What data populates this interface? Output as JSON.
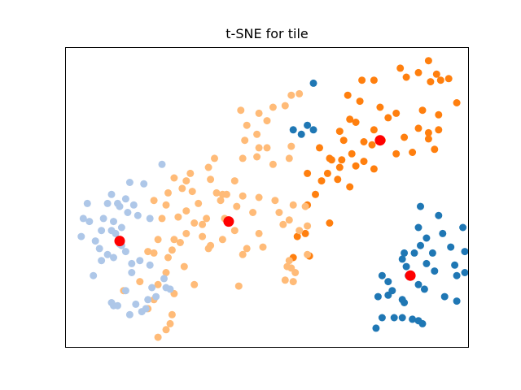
{
  "chart_data": {
    "type": "scatter",
    "title": "t-SNE for tile",
    "xlabel": "",
    "ylabel": "",
    "xlim": [
      0,
      100
    ],
    "ylim": [
      0,
      100
    ],
    "grid": false,
    "legend": "none",
    "series": [
      {
        "color": "#1f77b4",
        "points": [
          [
            61.5,
            88
          ],
          [
            56.5,
            72.5
          ],
          [
            58.5,
            71
          ],
          [
            60,
            74
          ],
          [
            61.5,
            72.5
          ],
          [
            88,
            47
          ],
          [
            92.5,
            44
          ],
          [
            98.5,
            40
          ],
          [
            87.5,
            40
          ],
          [
            93.5,
            38
          ],
          [
            89.5,
            36.5
          ],
          [
            95.5,
            33.5
          ],
          [
            88,
            34
          ],
          [
            86.5,
            31.5
          ],
          [
            84,
            31.5
          ],
          [
            91,
            31.5
          ],
          [
            99,
            32
          ],
          [
            83.5,
            29.5
          ],
          [
            78.5,
            24
          ],
          [
            85,
            24
          ],
          [
            91.5,
            25.5
          ],
          [
            97,
            24
          ],
          [
            99,
            25
          ],
          [
            89.5,
            28
          ],
          [
            84.5,
            27
          ],
          [
            87.5,
            21
          ],
          [
            80,
            22
          ],
          [
            96.5,
            27.5
          ],
          [
            81,
            19
          ],
          [
            89,
            19.5
          ],
          [
            83.5,
            16
          ],
          [
            80,
            17.5
          ],
          [
            77.5,
            17
          ],
          [
            83.5,
            10
          ],
          [
            86,
            9.5
          ],
          [
            87.5,
            9
          ],
          [
            81.5,
            10
          ],
          [
            78.5,
            10
          ],
          [
            97,
            15.5
          ],
          [
            94,
            17
          ],
          [
            88.5,
            8
          ],
          [
            77,
            6.5
          ],
          [
            84,
            15
          ]
        ]
      },
      {
        "color": "#ff7f0e",
        "points": [
          [
            90,
            95.5
          ],
          [
            87.5,
            91.5
          ],
          [
            83,
            93
          ],
          [
            84.5,
            90
          ],
          [
            92,
            91
          ],
          [
            90.5,
            88.5
          ],
          [
            95,
            89.5
          ],
          [
            93,
            89
          ],
          [
            73.5,
            89
          ],
          [
            76.5,
            89
          ],
          [
            70,
            84
          ],
          [
            73,
            82
          ],
          [
            78,
            80
          ],
          [
            82,
            78
          ],
          [
            80,
            76.5
          ],
          [
            88.5,
            79
          ],
          [
            92.5,
            77.5
          ],
          [
            97,
            81.5
          ],
          [
            90,
            71.5
          ],
          [
            92.5,
            72.5
          ],
          [
            90,
            69.5
          ],
          [
            84,
            70
          ],
          [
            87.5,
            73
          ],
          [
            91.5,
            66
          ],
          [
            82,
            64.5
          ],
          [
            86,
            65
          ],
          [
            78.5,
            69
          ],
          [
            76.5,
            72.5
          ],
          [
            70.5,
            76
          ],
          [
            72,
            75
          ],
          [
            68,
            72
          ],
          [
            69,
            69
          ],
          [
            74,
            68.5
          ],
          [
            76,
            67.5
          ],
          [
            71,
            64.5
          ],
          [
            63,
            66.5
          ],
          [
            65.5,
            63
          ],
          [
            68.5,
            62.5
          ],
          [
            72,
            60.5
          ],
          [
            74,
            62
          ],
          [
            67.5,
            56
          ],
          [
            70.5,
            53.5
          ],
          [
            65,
            58
          ],
          [
            76.5,
            59.5
          ],
          [
            60,
            58
          ],
          [
            63.5,
            55.5
          ],
          [
            62,
            51
          ],
          [
            60,
            47.5
          ],
          [
            65.5,
            41.5
          ],
          [
            59.5,
            38
          ],
          [
            57.5,
            37
          ],
          [
            60.5,
            30.5
          ],
          [
            56.5,
            30
          ],
          [
            66,
            62.5
          ],
          [
            68,
            60
          ]
        ]
      },
      {
        "color": "#ffbb78",
        "points": [
          [
            58,
            84.5
          ],
          [
            56,
            84
          ],
          [
            54.5,
            80.5
          ],
          [
            51.5,
            80
          ],
          [
            43.5,
            79
          ],
          [
            48,
            78
          ],
          [
            50,
            75.5
          ],
          [
            45,
            74
          ],
          [
            47.5,
            71
          ],
          [
            44.5,
            69
          ],
          [
            48,
            66.5
          ],
          [
            44,
            63
          ],
          [
            50,
            66.5
          ],
          [
            56,
            67
          ],
          [
            55.5,
            63
          ],
          [
            51.5,
            61
          ],
          [
            47.5,
            63.5
          ],
          [
            37,
            63
          ],
          [
            35.5,
            60
          ],
          [
            31,
            58
          ],
          [
            27,
            56.5
          ],
          [
            30,
            55.5
          ],
          [
            36,
            56
          ],
          [
            42,
            55.5
          ],
          [
            37.5,
            51.5
          ],
          [
            40,
            51
          ],
          [
            44,
            50.5
          ],
          [
            48,
            50
          ],
          [
            52,
            49
          ],
          [
            56.5,
            47.5
          ],
          [
            59.5,
            47
          ],
          [
            46.5,
            45
          ],
          [
            42.5,
            47
          ],
          [
            39,
            51
          ],
          [
            31.5,
            52
          ],
          [
            29,
            53
          ],
          [
            25.5,
            51.5
          ],
          [
            25,
            47.5
          ],
          [
            22,
            49
          ],
          [
            24,
            43
          ],
          [
            35,
            43
          ],
          [
            34,
            41
          ],
          [
            39.5,
            43
          ],
          [
            32,
            41.5
          ],
          [
            28,
            43.5
          ],
          [
            30,
            45.5
          ],
          [
            33,
            48
          ],
          [
            38.5,
            49
          ],
          [
            53,
            45
          ],
          [
            55.5,
            42.5
          ],
          [
            54,
            41
          ],
          [
            58,
            39
          ],
          [
            48,
            38
          ],
          [
            42,
            39
          ],
          [
            39,
            36
          ],
          [
            34,
            37
          ],
          [
            30,
            38
          ],
          [
            27,
            36
          ],
          [
            23,
            36
          ],
          [
            22,
            31.5
          ],
          [
            25.5,
            30
          ],
          [
            26.5,
            32.5
          ],
          [
            20.5,
            32
          ],
          [
            28.5,
            35
          ],
          [
            36,
            34
          ],
          [
            45,
            33
          ],
          [
            49,
            33.5
          ],
          [
            44,
            31
          ],
          [
            35.5,
            33
          ],
          [
            29.5,
            27
          ],
          [
            25,
            25
          ],
          [
            23,
            21
          ],
          [
            27,
            18
          ],
          [
            32,
            21
          ],
          [
            22,
            16
          ],
          [
            18.5,
            22
          ],
          [
            14.5,
            19
          ],
          [
            20.5,
            13
          ],
          [
            26.5,
            11
          ],
          [
            26,
            8
          ],
          [
            25,
            6
          ],
          [
            23,
            3.5
          ],
          [
            55.5,
            29
          ],
          [
            57,
            25
          ],
          [
            60,
            31
          ],
          [
            56,
            26.5
          ],
          [
            60,
            40.5
          ],
          [
            43,
            20.5
          ],
          [
            54.5,
            22.5
          ],
          [
            56.5,
            22
          ],
          [
            55,
            27
          ]
        ]
      },
      {
        "color": "#aec7e8",
        "points": [
          [
            24,
            61
          ],
          [
            16,
            55
          ],
          [
            19.5,
            54.5
          ],
          [
            11.5,
            51
          ],
          [
            13,
            48
          ],
          [
            15,
            49.5
          ],
          [
            13.5,
            47
          ],
          [
            17,
            47.5
          ],
          [
            15.5,
            45
          ],
          [
            18,
            44
          ],
          [
            21,
            43
          ],
          [
            10.5,
            48
          ],
          [
            5.5,
            48
          ],
          [
            4.5,
            43
          ],
          [
            6,
            42
          ],
          [
            9.5,
            43
          ],
          [
            12,
            42
          ],
          [
            14,
            40
          ],
          [
            11.5,
            39
          ],
          [
            9,
            39
          ],
          [
            4,
            37
          ],
          [
            7.5,
            35.5
          ],
          [
            8.5,
            33
          ],
          [
            14,
            34
          ],
          [
            12.5,
            38
          ],
          [
            13.5,
            34.5
          ],
          [
            15,
            32
          ],
          [
            12,
            30
          ],
          [
            10.5,
            31
          ],
          [
            9,
            29
          ],
          [
            16.5,
            28
          ],
          [
            18.5,
            29
          ],
          [
            21,
            27.5
          ],
          [
            16.5,
            25
          ],
          [
            24.5,
            23
          ],
          [
            25,
            20
          ],
          [
            21.5,
            20
          ],
          [
            22.5,
            17
          ],
          [
            20.5,
            16
          ],
          [
            19,
            12
          ],
          [
            16,
            11
          ],
          [
            13,
            14
          ],
          [
            17.5,
            14.5
          ],
          [
            20,
            13
          ],
          [
            15,
            19
          ],
          [
            12,
            14
          ],
          [
            7,
            24
          ],
          [
            11.5,
            15
          ],
          [
            26,
            19.5
          ]
        ]
      },
      {
        "color": "#ff0000",
        "size": 6.5,
        "points": [
          [
            78,
            69
          ],
          [
            40.5,
            42
          ],
          [
            13.5,
            35.5
          ],
          [
            85.5,
            24
          ]
        ]
      }
    ]
  }
}
